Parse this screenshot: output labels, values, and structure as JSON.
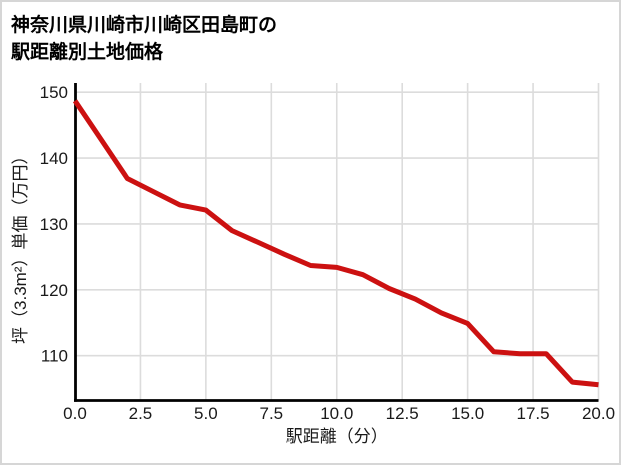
{
  "window": {
    "background_color": "#ffffff",
    "border_color": "#d6d6d6"
  },
  "title": {
    "line1": "神奈川県川崎市川崎区田島町の",
    "line2": "駅距離別土地価格",
    "full": "神奈川県川崎市川崎区田島町の駅距離別土地価格"
  },
  "chart_data": {
    "type": "line",
    "title": "神奈川県川崎市川崎区田島町の駅距離別土地価格",
    "xlabel": "駅距離（分）",
    "ylabel": "坪（3.3m²）単価（万円）",
    "series": [
      {
        "name": "駅距離別土地価格",
        "x": [
          0,
          1,
          2,
          3,
          4,
          5,
          6,
          7,
          8,
          9,
          10,
          11,
          12,
          13,
          14,
          15,
          16,
          17,
          18,
          19,
          20
        ],
        "values": [
          148.7,
          142.8,
          136.9,
          134.9,
          132.9,
          132.1,
          129.0,
          127.2,
          125.4,
          123.7,
          123.4,
          122.3,
          120.2,
          118.6,
          116.5,
          114.9,
          110.6,
          110.3,
          110.3,
          106.0,
          105.6
        ]
      }
    ],
    "xlim": [
      0,
      20
    ],
    "ylim": [
      103.2,
      151.4
    ],
    "x_ticks": [
      0,
      2.5,
      5,
      7.5,
      10,
      12.5,
      15,
      17.5,
      20
    ],
    "x_tick_labels": [
      "0.0",
      "2.5",
      "5.0",
      "7.5",
      "10.0",
      "12.5",
      "15.0",
      "17.5",
      "20.0"
    ],
    "y_ticks": [
      110,
      120,
      130,
      140,
      150
    ],
    "y_tick_labels": [
      "110",
      "120",
      "130",
      "140",
      "150"
    ],
    "grid": true,
    "legend": "none",
    "line_color": "#cc1111",
    "line_width": 5,
    "grid_color": "#dcdcdc",
    "axis_color": "#000000",
    "tick_label_color": "#1a1a1a"
  }
}
